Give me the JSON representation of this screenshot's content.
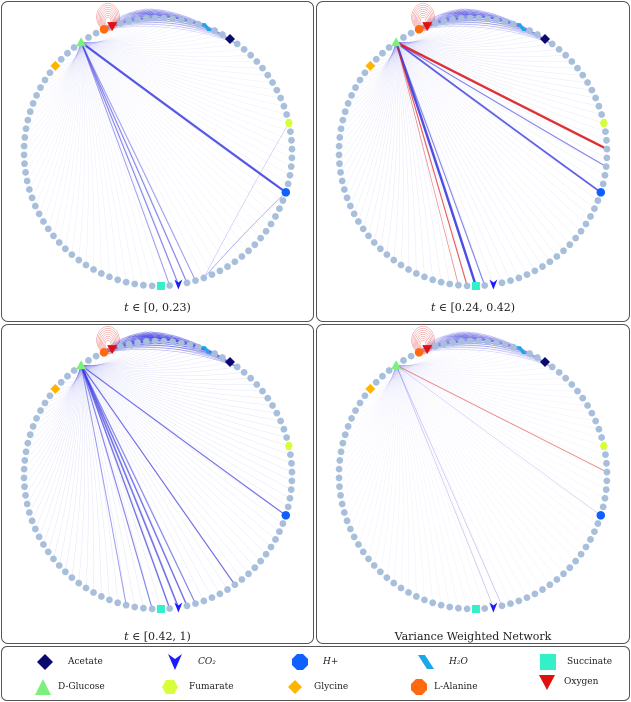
{
  "panels": [
    {
      "caption_prefix": "t ∈ ",
      "caption_range": "[0, 0.23)"
    },
    {
      "caption_prefix": "t ∈ ",
      "caption_range": "[0.24, 0.42)"
    },
    {
      "caption_prefix": "t ∈ ",
      "caption_range": "[0.42, 1)"
    },
    {
      "caption_prefix": "",
      "caption_range": "Variance Weighted Network"
    }
  ],
  "legend": {
    "items": [
      {
        "label": "Acetate",
        "icon": "diamond-icon",
        "color": "#0a0a6e"
      },
      {
        "label": "CO₂",
        "icon": "down-arrow-icon",
        "color": "#1a1aff"
      },
      {
        "label": "H+",
        "icon": "octagon-icon",
        "color": "#1060ff"
      },
      {
        "label": "H₂O",
        "icon": "parallelogram-icon",
        "color": "#19a8e8"
      },
      {
        "label": "Succinate",
        "icon": "square-icon",
        "color": "#33f0c8"
      },
      {
        "label": "D-Glucose",
        "icon": "triangle-icon",
        "color": "#7cf07c"
      },
      {
        "label": "Fumarate",
        "icon": "hexagon-icon",
        "color": "#d6ff3a"
      },
      {
        "label": "Glycine",
        "icon": "diamond-icon",
        "color": "#ffb400"
      },
      {
        "label": "L-Alanine",
        "icon": "octagon-icon",
        "color": "#ff6a10"
      },
      {
        "label": "Oxygen",
        "icon": "down-triangle-icon",
        "color": "#e01010"
      }
    ]
  },
  "colors": {
    "node": "#a8bfdc",
    "edge_blue": "#3a3ae0",
    "edge_red": "#e02020"
  }
}
